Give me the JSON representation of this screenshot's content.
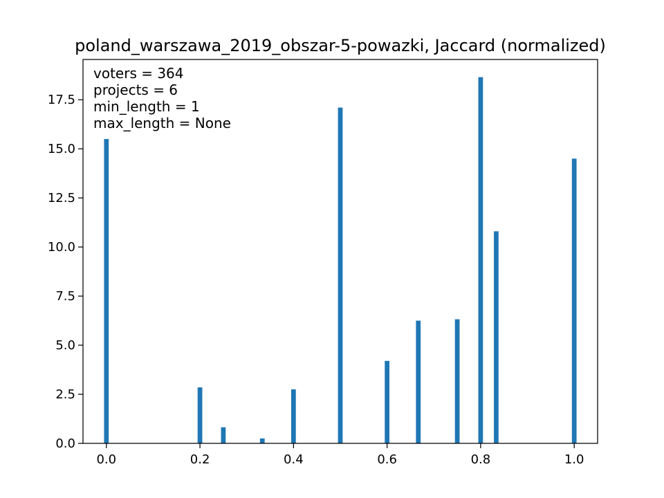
{
  "chart_data": {
    "type": "bar",
    "title": "poland_warszawa_2019_obszar-5-powazki, Jaccard (normalized)",
    "xlabel": "",
    "ylabel": "",
    "xlim": [
      -0.05,
      1.05
    ],
    "ylim": [
      0,
      19.55
    ],
    "grid": false,
    "bar_color": "#1f77b4",
    "bar_width": 0.01,
    "x": [
      0.0,
      0.2,
      0.25,
      0.3333,
      0.4,
      0.5,
      0.6,
      0.6667,
      0.75,
      0.8,
      0.8333,
      1.0
    ],
    "values": [
      15.5,
      2.85,
      0.82,
      0.25,
      2.75,
      17.1,
      4.2,
      6.25,
      6.32,
      18.65,
      10.8,
      14.5
    ],
    "x_ticks": [
      0.0,
      0.2,
      0.4,
      0.6,
      0.8,
      1.0
    ],
    "x_tick_labels": [
      "0.0",
      "0.2",
      "0.4",
      "0.6",
      "0.8",
      "1.0"
    ],
    "y_ticks": [
      0,
      2.5,
      5,
      7.5,
      10,
      12.5,
      15,
      17.5
    ],
    "y_tick_labels": [
      "0.0",
      "2.5",
      "5.0",
      "7.5",
      "10.0",
      "12.5",
      "15.0",
      "17.5"
    ],
    "annotations": [
      "voters = 364",
      "projects = 6",
      "min_length = 1",
      "max_length = None"
    ]
  }
}
